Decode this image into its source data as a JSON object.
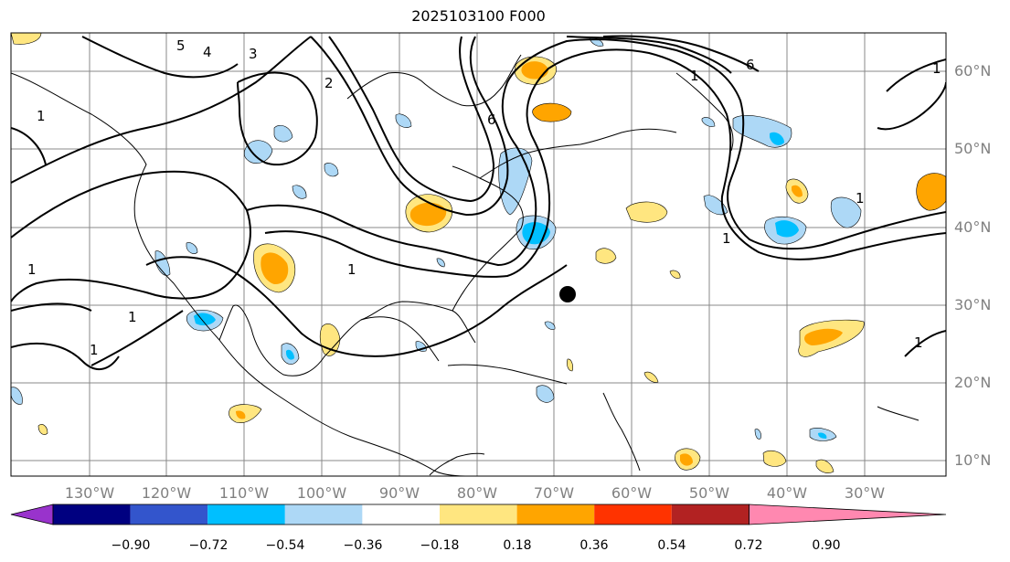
{
  "title": "2025103100 F000",
  "map": {
    "lon_labels": [
      "130°W",
      "120°W",
      "110°W",
      "100°W",
      "90°W",
      "80°W",
      "70°W",
      "60°W",
      "50°W",
      "40°W",
      "30°W"
    ],
    "lat_labels": [
      "60°N",
      "50°N",
      "40°N",
      "30°N",
      "20°N",
      "10°N"
    ],
    "contour_labels": [
      "5",
      "4",
      "3",
      "2",
      "1",
      "6",
      "1",
      "1",
      "1",
      "1",
      "1",
      "6",
      "1",
      "1",
      "1",
      "1"
    ]
  },
  "colorbar": {
    "ticks": [
      "−0.90",
      "−0.72",
      "−0.54",
      "−0.36",
      "−0.18",
      "0.18",
      "0.36",
      "0.54",
      "0.72",
      "0.90"
    ],
    "colors": [
      "#9933cc",
      "#000080",
      "#3355cc",
      "#00bfff",
      "#add8f6",
      "#ffffff",
      "#ffe680",
      "#ffa500",
      "#ff3300",
      "#b22222",
      "#ff88b0"
    ]
  }
}
